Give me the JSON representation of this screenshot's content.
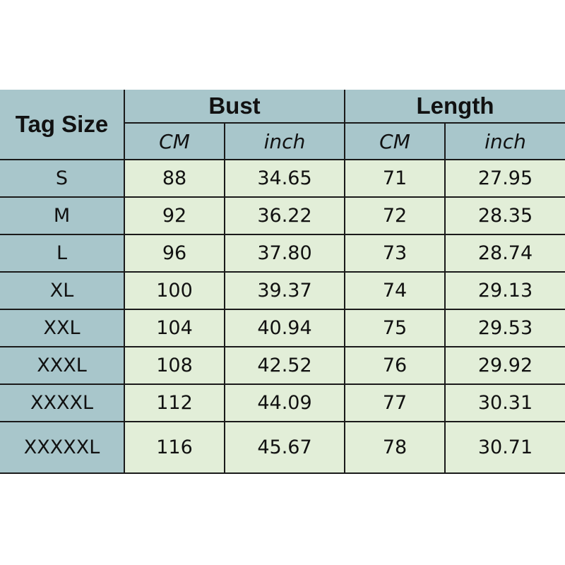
{
  "table": {
    "headers": {
      "tag_size": "Tag Size",
      "bust": "Bust",
      "length": "Length",
      "cm": "CM",
      "inch": "inch"
    },
    "colors": {
      "header": "#a8c6cb",
      "cell": "#e2eed8"
    },
    "rows": [
      {
        "size": "S",
        "bust_cm": "88",
        "bust_inch": "34.65",
        "length_cm": "71",
        "length_inch": "27.95"
      },
      {
        "size": "M",
        "bust_cm": "92",
        "bust_inch": "36.22",
        "length_cm": "72",
        "length_inch": "28.35"
      },
      {
        "size": "L",
        "bust_cm": "96",
        "bust_inch": "37.80",
        "length_cm": "73",
        "length_inch": "28.74"
      },
      {
        "size": "XL",
        "bust_cm": "100",
        "bust_inch": "39.37",
        "length_cm": "74",
        "length_inch": "29.13"
      },
      {
        "size": "XXL",
        "bust_cm": "104",
        "bust_inch": "40.94",
        "length_cm": "75",
        "length_inch": "29.53"
      },
      {
        "size": "XXXL",
        "bust_cm": "108",
        "bust_inch": "42.52",
        "length_cm": "76",
        "length_inch": "29.92"
      },
      {
        "size": "XXXXL",
        "bust_cm": "112",
        "bust_inch": "44.09",
        "length_cm": "77",
        "length_inch": "30.31"
      },
      {
        "size": "XXXXXL",
        "bust_cm": "116",
        "bust_inch": "45.67",
        "length_cm": "78",
        "length_inch": "30.71"
      }
    ]
  }
}
